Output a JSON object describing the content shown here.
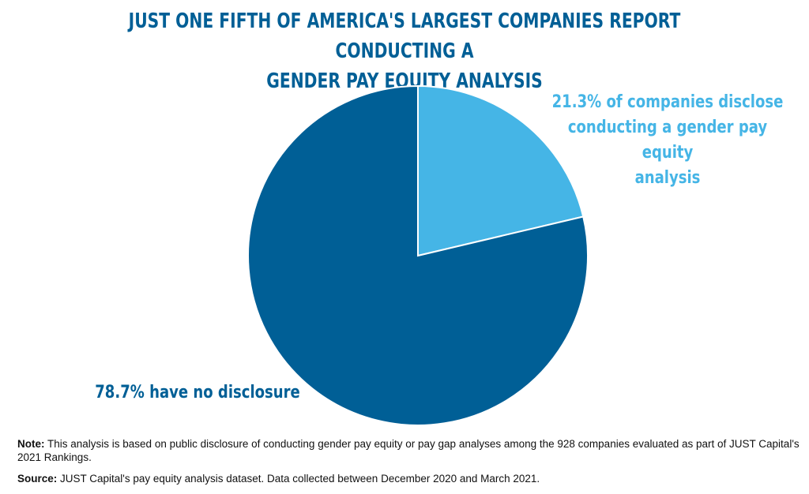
{
  "chart_data": {
    "type": "pie",
    "title": "JUST ONE FIFTH OF AMERICA'S LARGEST COMPANIES REPORT CONDUCTING A GENDER PAY EQUITY ANALYSIS",
    "title_lines": [
      "JUST ONE FIFTH OF AMERICA'S LARGEST COMPANIES REPORT CONDUCTING A",
      "GENDER PAY EQUITY ANALYSIS"
    ],
    "slices": [
      {
        "value": 21.3,
        "label": "21.3% of companies disclose conducting a gender pay equity analysis",
        "label_lines": [
          "21.3% of companies disclose",
          "conducting a gender pay equity",
          "analysis"
        ],
        "color": "#45b5e6"
      },
      {
        "value": 78.7,
        "label": "78.7% have no disclosure",
        "label_lines": [
          "78.7% have no disclosure"
        ],
        "color": "#005f96"
      }
    ],
    "start_angle_deg": 0,
    "direction": "clockwise"
  },
  "notes": {
    "note_label": "Note:",
    "note_text": " This analysis is based on public disclosure of conducting gender pay equity or pay gap analyses among the 928 companies evaluated as part of JUST Capital's 2021 Rankings.",
    "source_label": "Source:",
    "source_text": " JUST Capital's pay equity analysis dataset. Data collected between December 2020 and March 2021."
  },
  "colors": {
    "title": "#005f96",
    "text": "#111111"
  }
}
